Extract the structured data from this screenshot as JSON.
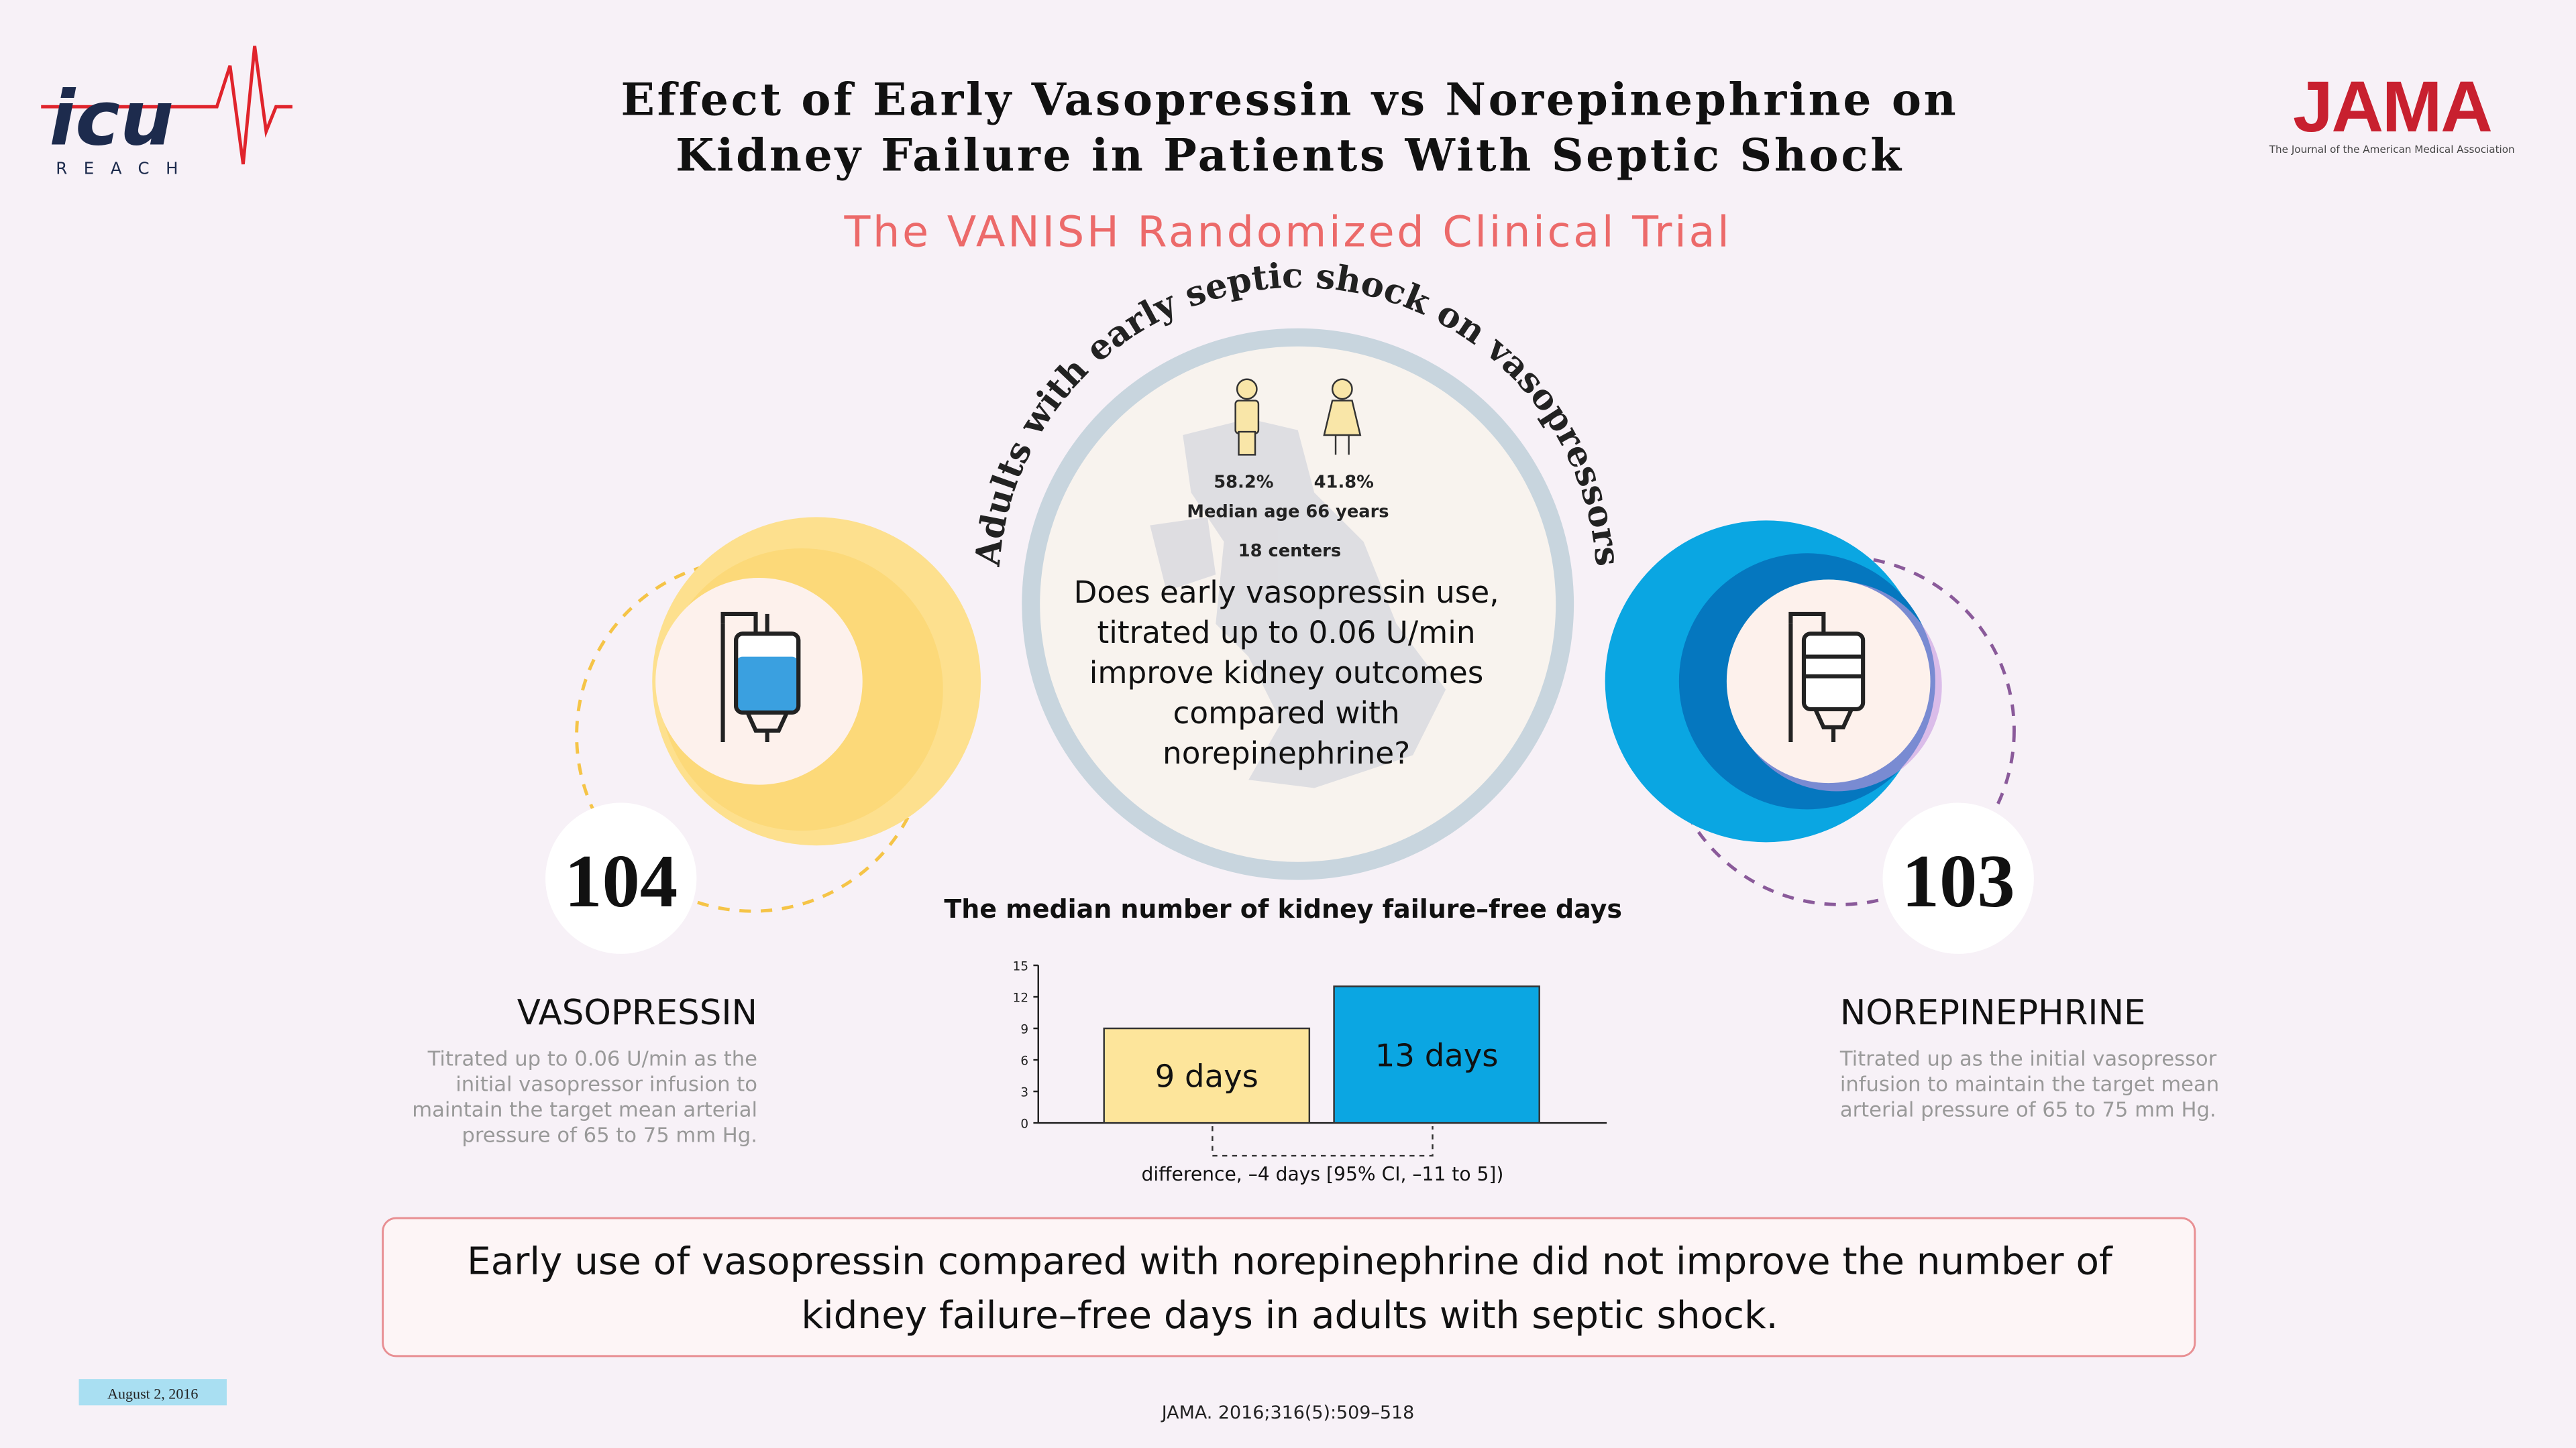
{
  "header": {
    "logo": "icu",
    "logo_sub": "REACH",
    "title_lines": [
      "Effect of Early Vasopressin vs Norepinephrine on",
      "Kidney Failure in Patients With Septic Shock"
    ],
    "subtitle": "The VANISH Randomized Clinical Trial",
    "journal": "JAMA",
    "journal_sub": "The Journal of the American Medical Association"
  },
  "population": {
    "arc_text": "Adults with early septic shock on vasopressors",
    "male": "58.2%",
    "female": "41.8%",
    "median_age": "Median age 66 years",
    "centers": "18 centers",
    "question_lines": [
      "Does early vasopressin use,",
      "titrated up to 0.06 U/min",
      "improve kidney outcomes",
      "compared with",
      "norepinephrine?"
    ]
  },
  "arms": [
    {
      "n": "104",
      "name": "VASOPRESSIN",
      "desc_lines": [
        "Titrated up to 0.06 U/min as the",
        "initial vasopressor infusion to",
        "maintain the target mean arterial",
        "pressure of 65 to 75 mm Hg."
      ]
    },
    {
      "n": "103",
      "name": "NOREPINEPHRINE",
      "desc_lines": [
        "Titrated up as the initial vasopressor",
        "infusion to maintain the target mean",
        "arterial pressure of 65 to 75 mm Hg."
      ]
    }
  ],
  "chart_data": {
    "type": "bar",
    "title": "The median number of kidney failure–free days",
    "categories": [
      "Vasopressin",
      "Norepinephrine"
    ],
    "series": [
      {
        "name": "Vasopressin",
        "color": "#fde59b",
        "values": [
          9,
          null
        ],
        "value_labels": [
          "9 days",
          null
        ]
      },
      {
        "name": "Norepinephrine",
        "color": "#0ba6e2",
        "values": [
          null,
          13
        ],
        "value_labels": [
          null,
          "13 days"
        ]
      }
    ],
    "ylim": [
      0,
      15
    ],
    "yticks": [
      0,
      3,
      6,
      9,
      12,
      15
    ],
    "annotation": "difference, –4 days [95% CI, –11 to 5])"
  },
  "conclusion_lines": [
    "Early use of vasopressin compared with norepinephrine did not improve the number of",
    "kidney failure–free days in adults with septic shock."
  ],
  "date": "August 2, 2016",
  "citation": "JAMA. 2016;316(5):509–518"
}
